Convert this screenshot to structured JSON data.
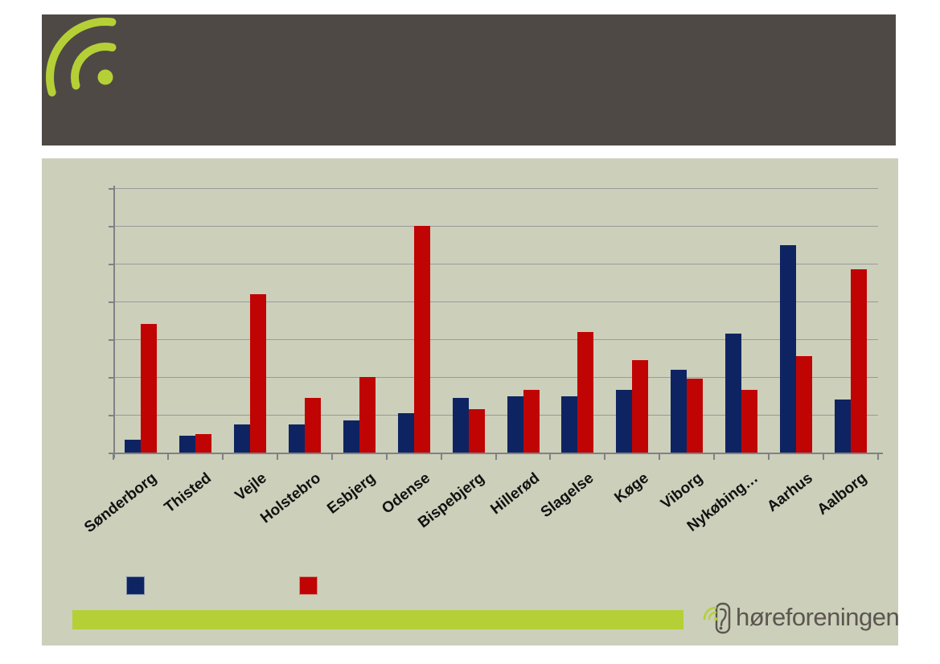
{
  "theme": {
    "header_bg": "#4f4945",
    "slide_bg": "#cccfba",
    "accent_green": "#b5d036",
    "grid_color": "#999b99",
    "axis_color": "#7f8184",
    "label_color": "#111111",
    "brand_color": "#5b564f",
    "page_bg": "#ffffff"
  },
  "header": {
    "title": "",
    "logo_icon": "signal-arcs-icon"
  },
  "chart_data": {
    "type": "bar",
    "title": "",
    "xlabel": "",
    "ylabel": "",
    "categories": [
      "Sønderborg",
      "Thisted",
      "Vejle",
      "Holstebro",
      "Esbjerg",
      "Odense",
      "Bispebjerg",
      "Hillerød",
      "Slagelse",
      "Køge",
      "Viborg",
      "Nykøbing…",
      "Aarhus",
      "Aalborg"
    ],
    "series": [
      {
        "name": "",
        "color": "#0e2462",
        "values": [
          3.5,
          4.5,
          7.5,
          7.5,
          8.5,
          10.5,
          14.5,
          15,
          15,
          16.5,
          22,
          31.5,
          55,
          14
        ]
      },
      {
        "name": "",
        "color": "#c00404",
        "values": [
          34,
          5,
          42,
          14.5,
          20,
          60,
          11.5,
          16.5,
          32,
          24.5,
          19.5,
          16.5,
          25.5,
          48.5
        ]
      }
    ],
    "ylim": [
      0,
      70
    ],
    "gridline_interval": 10,
    "grid": true,
    "y_tick_labels": [],
    "x_tick_rotation": -38,
    "legend_position": "bottom",
    "legend_labels": [
      "",
      ""
    ]
  },
  "footer": {
    "brand_text": "høreforeningen",
    "brand_icon": "ear-logo-icon",
    "accent_bar": "green-accent-bar"
  }
}
